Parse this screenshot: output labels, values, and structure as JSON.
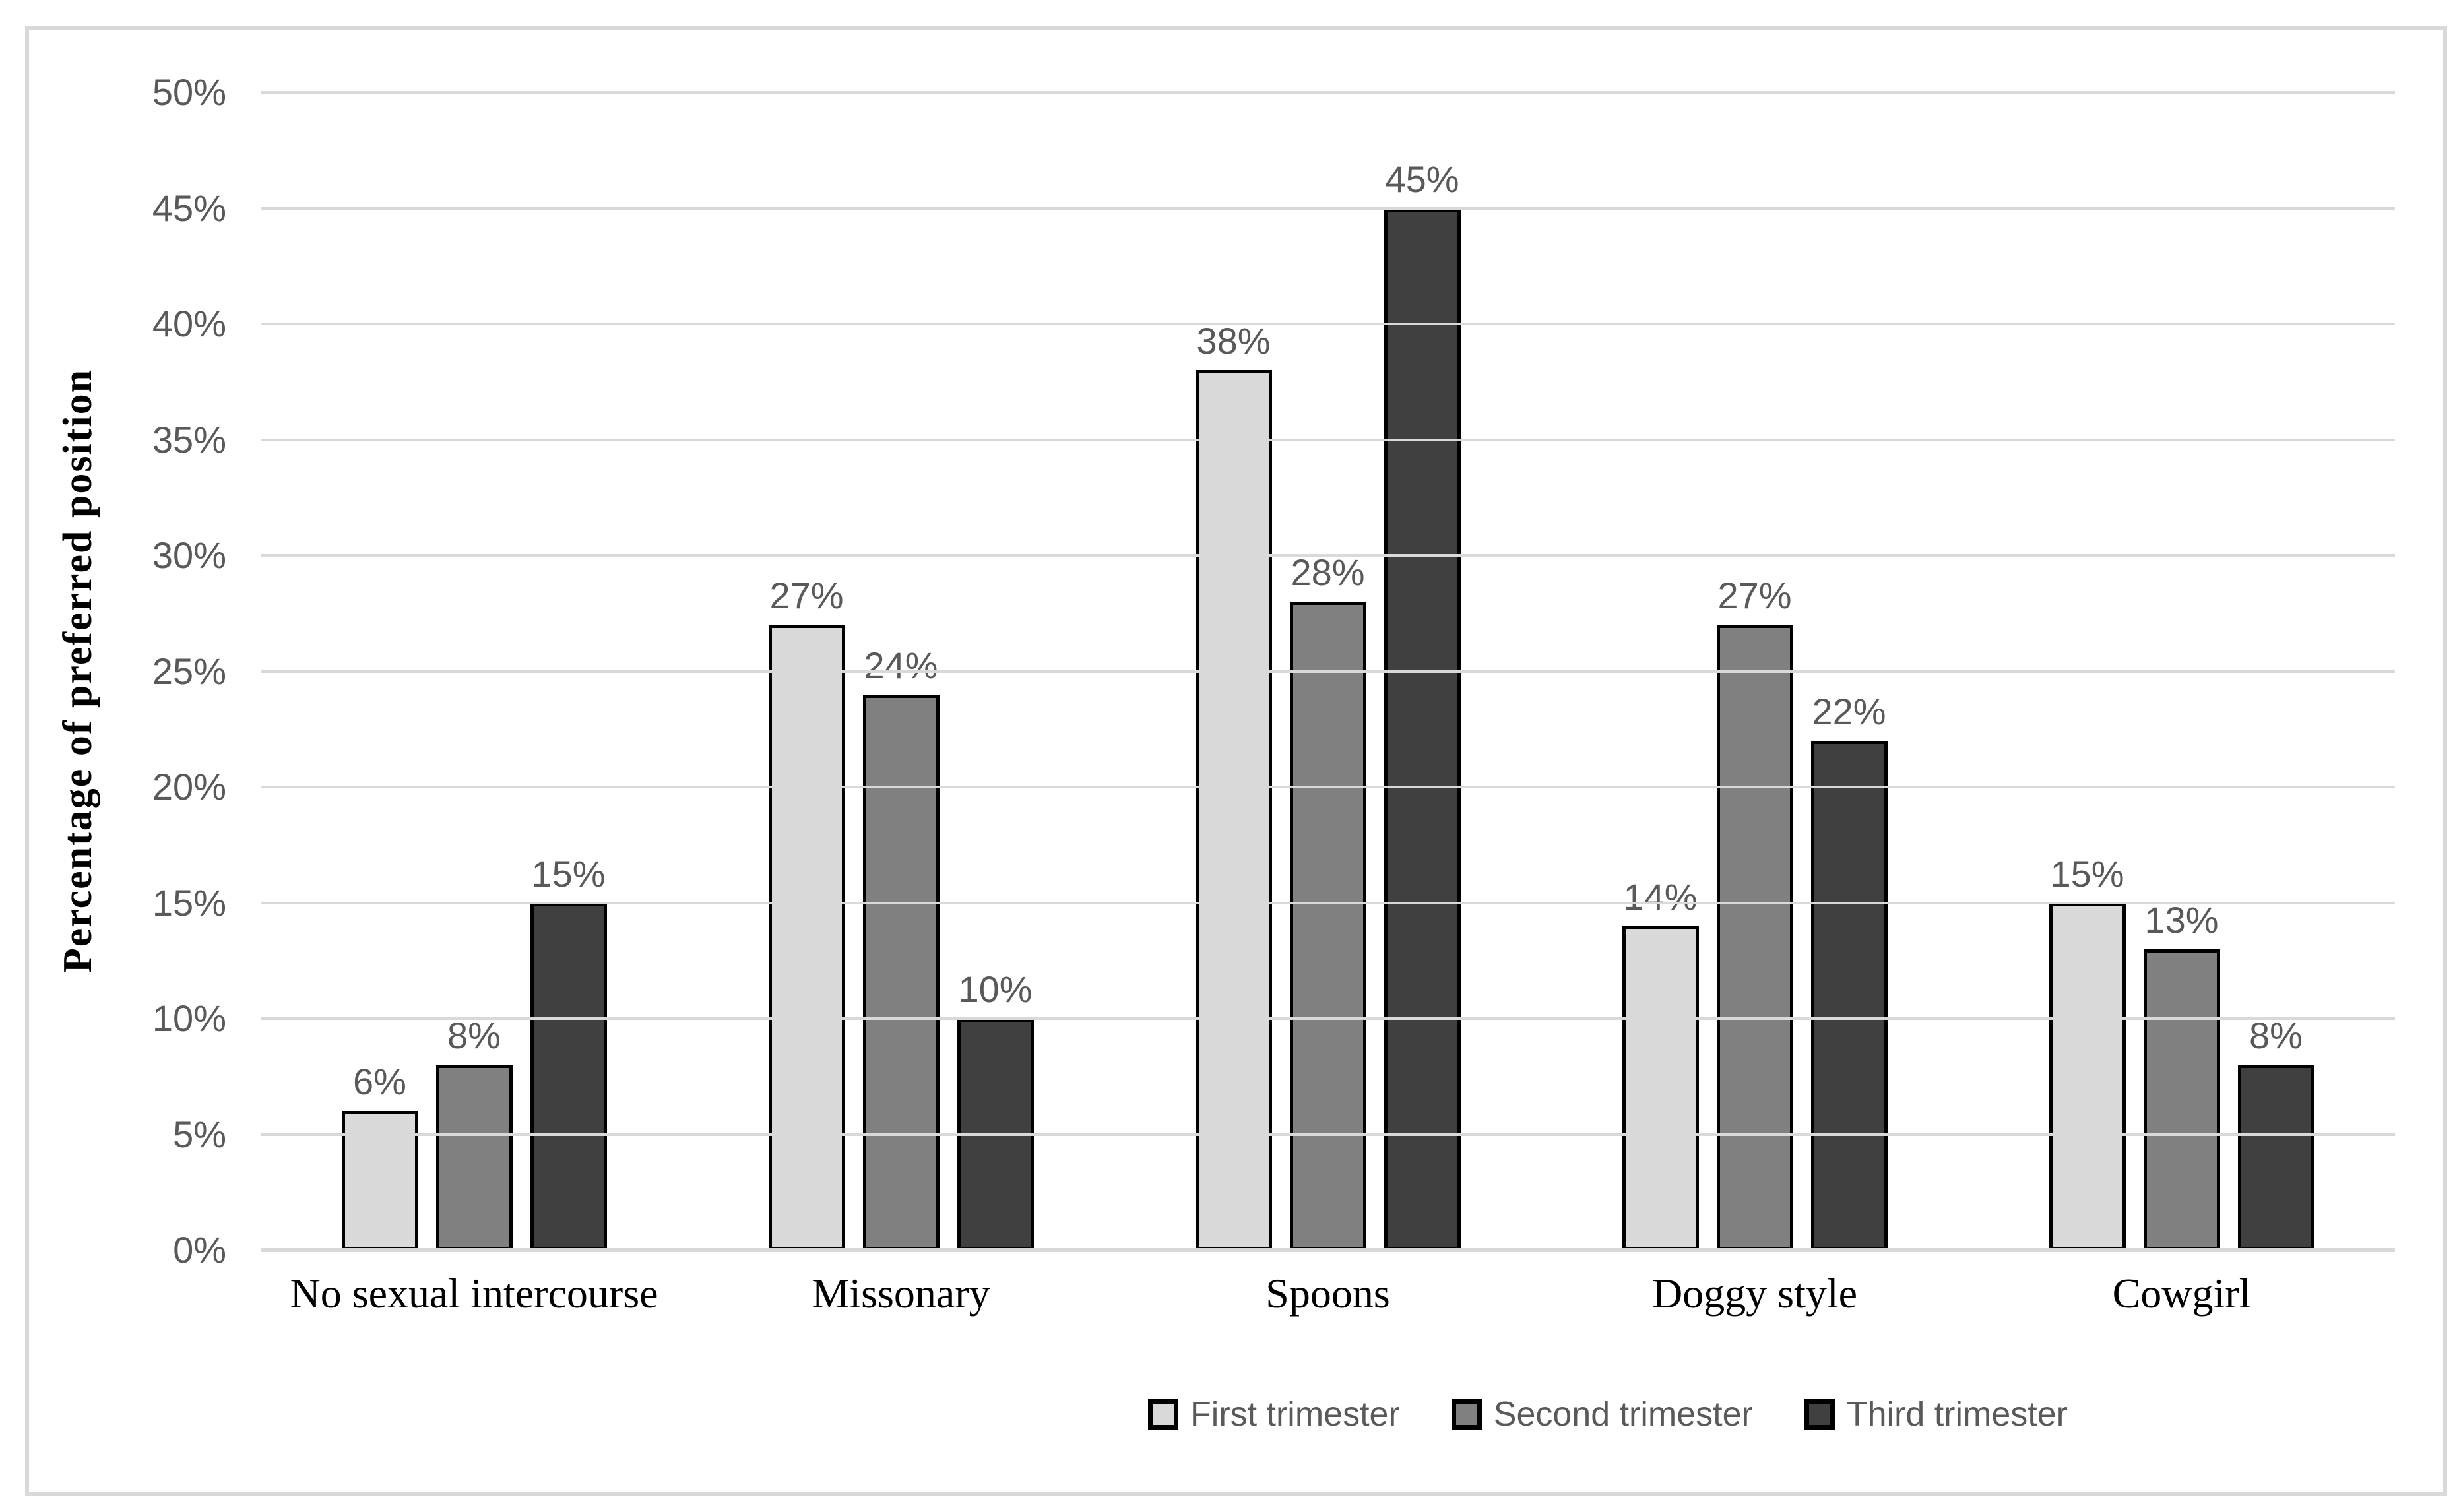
{
  "chart_data": {
    "type": "bar",
    "title": "",
    "ylabel": "Percentage of preferred position",
    "xlabel": "",
    "ylim": [
      0,
      50
    ],
    "ytick_step": 5,
    "ytick_suffix": "%",
    "value_label_suffix": "%",
    "grid": true,
    "legend_position": "bottom",
    "categories": [
      "No sexual intercourse",
      "Missonary",
      "Spoons",
      "Doggy style",
      "Cowgirl"
    ],
    "series": [
      {
        "name": "First trimester",
        "color": "#d9d9d9",
        "values": [
          6,
          27,
          38,
          14,
          15
        ]
      },
      {
        "name": "Second trimester",
        "color": "#808080",
        "values": [
          8,
          24,
          28,
          27,
          13
        ]
      },
      {
        "name": "Third trimester",
        "color": "#404040",
        "values": [
          15,
          10,
          45,
          22,
          8
        ]
      }
    ],
    "colors": {
      "background": "#ffffff",
      "frame_border": "#d9d9d9",
      "gridline": "#d9d9d9",
      "bar_border": "#000000",
      "tick_text": "#595959",
      "value_text": "#595959",
      "legend_text": "#595959",
      "category_text": "#000000",
      "axis_title_text": "#000000"
    }
  }
}
